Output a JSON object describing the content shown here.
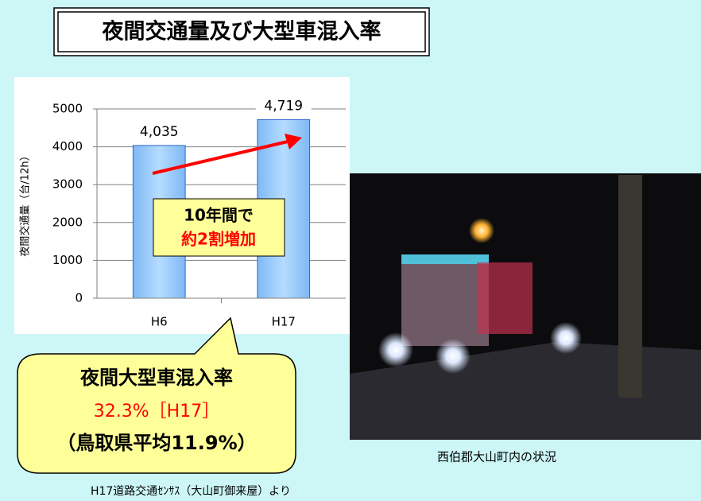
{
  "title": "夜間交通量及び大型車混入率",
  "chart_data": {
    "type": "bar",
    "y_label": "夜間交通量（台/12h）",
    "categories": [
      "H6",
      "H17"
    ],
    "values": [
      4035,
      4719
    ],
    "value_labels": [
      "4,035",
      "4,719"
    ],
    "color": "#99ccff",
    "ylim": [
      0,
      5000
    ],
    "yticks": [
      0,
      1000,
      2000,
      3000,
      4000,
      5000
    ],
    "grid": true,
    "annotation": [
      "10年間で",
      "約2割増加"
    ]
  },
  "callout": [
    "夜間大型車混入率",
    "32.3%［H17］",
    "（鳥取県平均11.9%）"
  ],
  "photo_caption": "西伯郡大山町内の状況",
  "source": "H17道路交通ｾﾝｻｽ（大山町御来屋）より"
}
